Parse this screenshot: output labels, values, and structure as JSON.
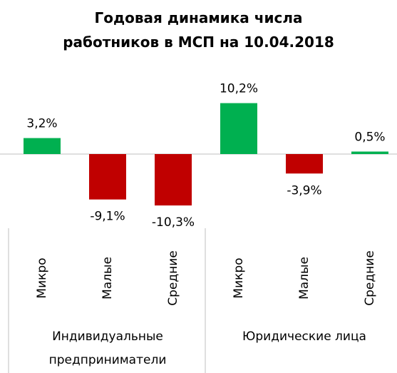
{
  "chart_data": {
    "type": "bar",
    "title": "Годовая динамика числа\nработников в МСП на 10.04.2018",
    "categories": [
      "Микро",
      "Малые",
      "Средние",
      "Микро",
      "Малые",
      "Средние"
    ],
    "values": [
      3.2,
      -9.1,
      -10.3,
      10.2,
      -3.9,
      0.5
    ],
    "value_labels": [
      "3,2%",
      "-9,1%",
      "-10,3%",
      "10,2%",
      "-3,9%",
      "0,5%"
    ],
    "colors": [
      "#00b050",
      "#c00000",
      "#c00000",
      "#00b050",
      "#c00000",
      "#00b050"
    ],
    "groups": [
      {
        "label": "Индивидуальные\nпредприниматели",
        "span": 3
      },
      {
        "label": "Юридические лица",
        "span": 3
      }
    ]
  }
}
